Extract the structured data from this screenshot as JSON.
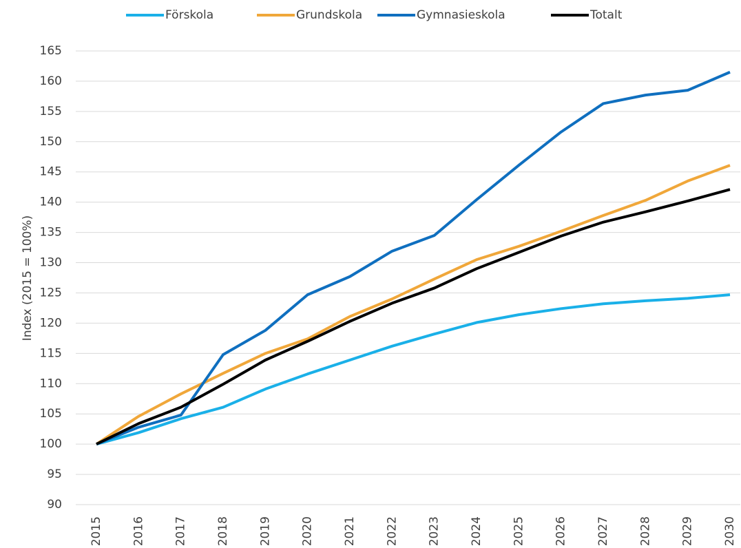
{
  "chart_data": {
    "type": "line",
    "y_label": "Index (2015 = 100%)",
    "categories": [
      "2015",
      "2016",
      "2017",
      "2018",
      "2019",
      "2020",
      "2021",
      "2022",
      "2023",
      "2024",
      "2025",
      "2026",
      "2027",
      "2028",
      "2029",
      "2030"
    ],
    "series": [
      {
        "name": "Förskola",
        "color": "#1ab0e8",
        "values": [
          100,
          101.9,
          104.2,
          106.1,
          109.1,
          111.6,
          113.9,
          116.2,
          118.2,
          120.1,
          121.4,
          122.4,
          123.2,
          123.7,
          124.1,
          124.7
        ]
      },
      {
        "name": "Grundskola",
        "color": "#f0a73a",
        "values": [
          100,
          104.6,
          108.3,
          111.7,
          115.0,
          117.4,
          121.1,
          124.0,
          127.3,
          130.5,
          132.7,
          135.2,
          137.8,
          140.3,
          143.5,
          146.1
        ]
      },
      {
        "name": "Gymnasieskola",
        "color": "#0f6fbf",
        "values": [
          100,
          102.8,
          104.8,
          114.8,
          118.8,
          124.7,
          127.7,
          131.9,
          134.5,
          140.4,
          146.1,
          151.6,
          156.3,
          157.7,
          158.5,
          161.5
        ]
      },
      {
        "name": "Totalt",
        "color": "#000000",
        "values": [
          100,
          103.4,
          106.1,
          109.9,
          113.9,
          117.0,
          120.3,
          123.3,
          125.8,
          129.0,
          131.7,
          134.4,
          136.7,
          138.4,
          140.2,
          142.1
        ]
      }
    ],
    "ylim": [
      90,
      165
    ],
    "yticks": [
      90,
      95,
      100,
      105,
      110,
      115,
      120,
      125,
      130,
      135,
      140,
      145,
      150,
      155,
      160,
      165
    ],
    "grid": true,
    "legend": "top"
  }
}
